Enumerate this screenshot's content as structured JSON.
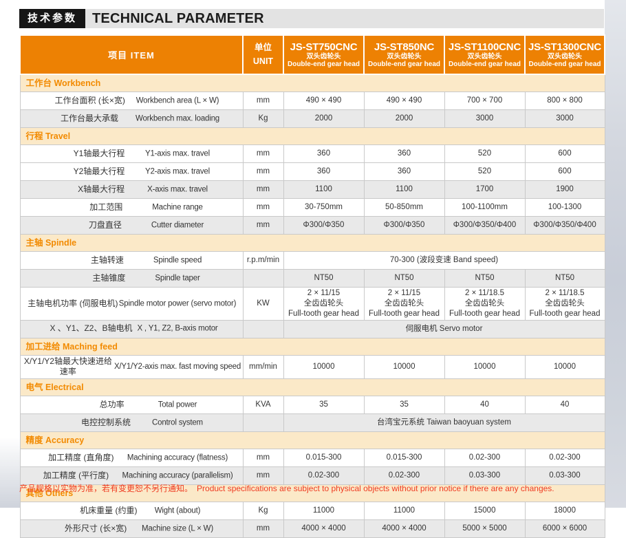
{
  "page_title": {
    "cn": "技术参数",
    "en": "TECHNICAL PARAMETER"
  },
  "colors": {
    "header_orange": "#ED8103",
    "section_band_bg": "#FBE9C8",
    "section_text_orange": "#F28A00",
    "row_alt_gray": "#E9E9E9",
    "note_red": "#EF3B22"
  },
  "table": {
    "header": {
      "item": "项目 ITEM",
      "unit_cn": "单位",
      "unit_en": "UNIT",
      "models": [
        {
          "name": "JS-ST750CNC",
          "sub_cn": "双头齿轮头",
          "sub_en": "Double-end gear head"
        },
        {
          "name": "JS-ST850NC",
          "sub_cn": "双头齿轮头",
          "sub_en": "Double-end gear head"
        },
        {
          "name": "JS-ST1100CNC",
          "sub_cn": "双头齿轮头",
          "sub_en": "Double-end gear head"
        },
        {
          "name": "JS-ST1300CNC",
          "sub_cn": "双头齿轮头",
          "sub_en": "Double-end gear head"
        }
      ]
    },
    "sections": [
      {
        "title": "工作台 Workbench",
        "rows": [
          {
            "cn": "工作台面积 (长×宽)",
            "en": "Workbench area (L × W)",
            "unit": "mm",
            "values": [
              "490 × 490",
              "490 × 490",
              "700 × 700",
              "800 × 800"
            ],
            "shade": false,
            "span": false
          },
          {
            "cn": "工作台最大承载",
            "en": "Workbench max. loading",
            "unit": "Kg",
            "values": [
              "2000",
              "2000",
              "3000",
              "3000"
            ],
            "shade": true,
            "span": false
          }
        ]
      },
      {
        "title": "行程 Travel",
        "rows": [
          {
            "cn": "Y1轴最大行程",
            "en": "Y1-axis max. travel",
            "unit": "mm",
            "values": [
              "360",
              "360",
              "520",
              "600"
            ],
            "shade": false,
            "span": false
          },
          {
            "cn": "Y2轴最大行程",
            "en": "Y2-axis max. travel",
            "unit": "mm",
            "values": [
              "360",
              "360",
              "520",
              "600"
            ],
            "shade": false,
            "span": false
          },
          {
            "cn": "X轴最大行程",
            "en": "X-axis max. travel",
            "unit": "mm",
            "values": [
              "1100",
              "1100",
              "1700",
              "1900"
            ],
            "shade": true,
            "span": false
          },
          {
            "cn": "加工范围",
            "en": "Machine range",
            "unit": "mm",
            "values": [
              "30-750mm",
              "50-850mm",
              "100-1100mm",
              "100-1300"
            ],
            "shade": false,
            "span": false
          },
          {
            "cn": "刀盘直径",
            "en": "Cutter diameter",
            "unit": "mm",
            "values": [
              "Φ300/Φ350",
              "Φ300/Φ350",
              "Φ300/Φ350/Φ400",
              "Φ300/Φ350/Φ400"
            ],
            "shade": true,
            "span": false
          }
        ]
      },
      {
        "title": "主轴 Spindle",
        "rows": [
          {
            "cn": "主轴转速",
            "en": "Spindle speed",
            "unit": "r.p.m/min",
            "values": [
              "70-300 (波段变速 Band speed)"
            ],
            "shade": false,
            "span": true
          },
          {
            "cn": "主轴锥度",
            "en": "Spindle taper",
            "unit": "",
            "values": [
              "NT50",
              "NT50",
              "NT50",
              "NT50"
            ],
            "shade": true,
            "span": false
          },
          {
            "cn": "主轴电机功率 (伺服电机)",
            "en": "Spindle motor power (servo motor)",
            "unit": "KW",
            "values": [
              "2 × 11/15\n全齿齿轮头\nFull-tooth gear head",
              "2 × 11/15\n全齿齿轮头\nFull-tooth gear head",
              "2 × 11/18.5\n全齿齿轮头\nFull-tooth gear head",
              "2 × 11/18.5\n全齿齿轮头\nFull-tooth gear head"
            ],
            "shade": false,
            "span": false
          },
          {
            "cn": "X 、Y1、Z2、B轴电机",
            "en": "X , Y1, Z2, B-axis motor",
            "unit": "",
            "values": [
              "伺服电机 Servo motor"
            ],
            "shade": true,
            "span": true
          }
        ]
      },
      {
        "title": "加工进给 Maching feed",
        "rows": [
          {
            "cn": "X/Y1/Y2轴最大快速进给速率",
            "en": "X/Y1/Y2-axis max. fast moving speed",
            "unit": "mm/min",
            "values": [
              "10000",
              "10000",
              "10000",
              "10000"
            ],
            "shade": false,
            "span": false
          }
        ]
      },
      {
        "title": "电气 Electrical",
        "rows": [
          {
            "cn": "总功率",
            "en": "Total power",
            "unit": "KVA",
            "values": [
              "35",
              "35",
              "40",
              "40"
            ],
            "shade": false,
            "span": false
          },
          {
            "cn": "电控控制系统",
            "en": "Control system",
            "unit": "",
            "values": [
              "台湾宝元系统 Taiwan baoyuan system"
            ],
            "shade": true,
            "span": true
          }
        ]
      },
      {
        "title": "精度 Accuracy",
        "rows": [
          {
            "cn": "加工精度 (直角度)",
            "en": "Machining accuracy (flatness)",
            "unit": "mm",
            "values": [
              "0.015-300",
              "0.015-300",
              "0.02-300",
              "0.02-300"
            ],
            "shade": false,
            "span": false
          },
          {
            "cn": "加工精度 (平行度)",
            "en": "Machining accuracy (parallelism)",
            "unit": "mm",
            "values": [
              "0.02-300",
              "0.02-300",
              "0.03-300",
              "0.03-300"
            ],
            "shade": true,
            "span": false
          }
        ]
      },
      {
        "title": "其他 Others",
        "rows": [
          {
            "cn": "机床重量 (约重)",
            "en": "Wight (about)",
            "unit": "Kg",
            "values": [
              "11000",
              "11000",
              "15000",
              "18000"
            ],
            "shade": false,
            "span": false
          },
          {
            "cn": "外形尺寸 (长×宽)",
            "en": "Machine size  (L × W)",
            "unit": "mm",
            "values": [
              "4000 × 4000",
              "4000 × 4000",
              "5000 × 5000",
              "6000 × 6000"
            ],
            "shade": true,
            "span": false
          }
        ]
      }
    ]
  },
  "footer_note": {
    "cn": "产品规格以实物为准，若有变更恕不另行通知。",
    "en": "Product specifications are subject to physical objects without prior notice if there are any changes."
  }
}
